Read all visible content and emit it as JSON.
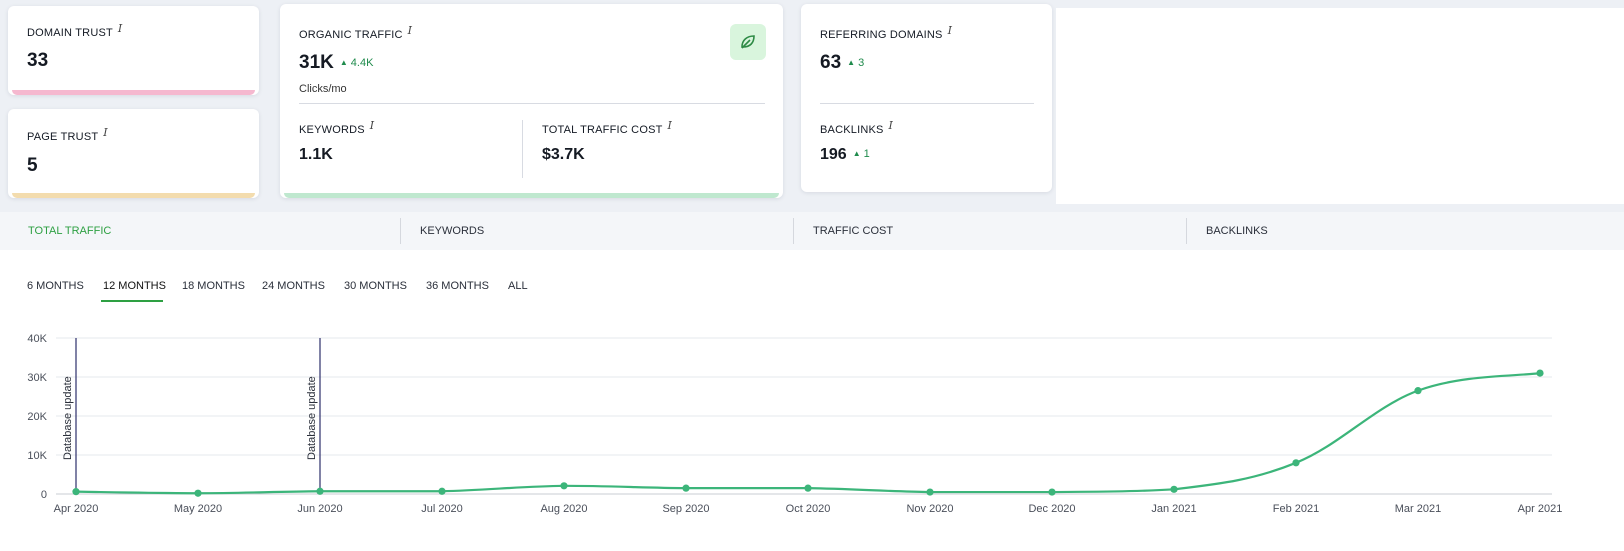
{
  "cards": {
    "domain_trust": {
      "label": "DOMAIN TRUST",
      "value": "33",
      "accent": "#f5b8cf"
    },
    "page_trust": {
      "label": "PAGE TRUST",
      "value": "5",
      "accent": "#f3dcae"
    },
    "organic_traffic": {
      "label": "ORGANIC TRAFFIC",
      "value": "31K",
      "delta": "4.4K",
      "unit": "Clicks/mo",
      "accent": "#bfe8cf",
      "icon": "leaf-icon"
    },
    "keywords": {
      "label": "KEYWORDS",
      "value": "1.1K"
    },
    "total_traffic_cost": {
      "label": "TOTAL TRAFFIC COST",
      "value": "$3.7K"
    },
    "referring_domains": {
      "label": "REFERRING DOMAINS",
      "value": "63",
      "delta": "3"
    },
    "backlinks": {
      "label": "BACKLINKS",
      "value": "196",
      "delta": "1"
    },
    "info_glyph": "i",
    "up_glyph": "▲"
  },
  "tabs": [
    {
      "label": "TOTAL TRAFFIC",
      "active": true
    },
    {
      "label": "KEYWORDS",
      "active": false
    },
    {
      "label": "TRAFFIC COST",
      "active": false
    },
    {
      "label": "BACKLINKS",
      "active": false
    }
  ],
  "periods": [
    {
      "label": "6 MONTHS",
      "active": false
    },
    {
      "label": "12 MONTHS",
      "active": true
    },
    {
      "label": "18 MONTHS",
      "active": false
    },
    {
      "label": "24 MONTHS",
      "active": false
    },
    {
      "label": "30 MONTHS",
      "active": false
    },
    {
      "label": "36 MONTHS",
      "active": false
    },
    {
      "label": "ALL",
      "active": false
    }
  ],
  "colors": {
    "accent_green": "#2ea043",
    "line": "#3cb57a",
    "marker_line": "#2d2f6b"
  },
  "chart_data": {
    "type": "line",
    "x": [
      "Apr 2020",
      "May 2020",
      "Jun 2020",
      "Jul 2020",
      "Aug 2020",
      "Sep 2020",
      "Oct 2020",
      "Nov 2020",
      "Dec 2020",
      "Jan 2021",
      "Feb 2021",
      "Mar 2021",
      "Apr 2021"
    ],
    "series": [
      {
        "values": [
          600,
          200,
          700,
          700,
          2100,
          1500,
          1500,
          500,
          500,
          1200,
          8000,
          26500,
          31000
        ]
      }
    ],
    "y_ticks": [
      "0",
      "10K",
      "20K",
      "30K",
      "40K"
    ],
    "ylim": [
      0,
      40000
    ],
    "grid": true,
    "annotations": [
      {
        "x": "Apr 2020",
        "label": "Database update"
      },
      {
        "x": "Jun 2020",
        "label": "Database update"
      }
    ]
  }
}
